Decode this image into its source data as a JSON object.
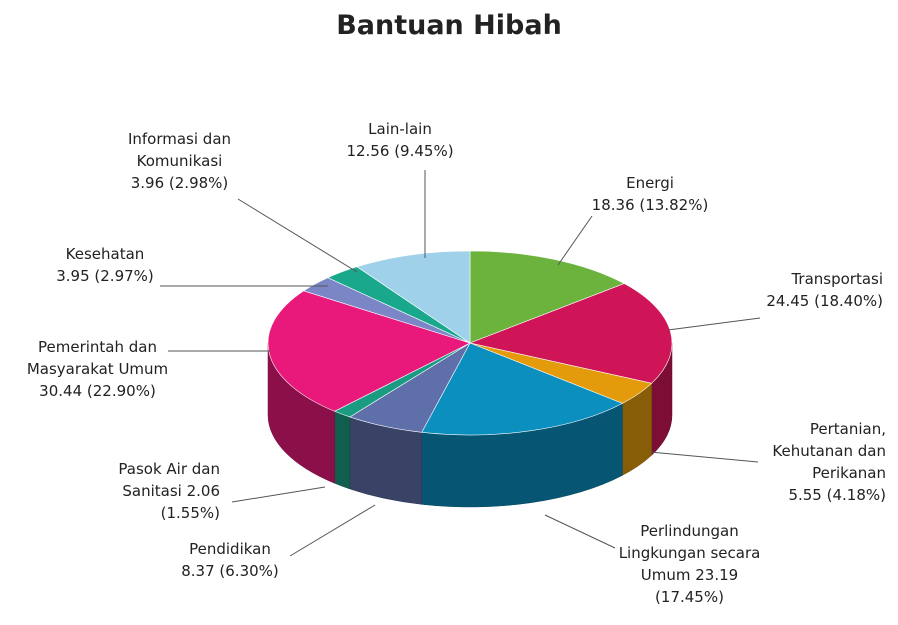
{
  "chart_data": {
    "type": "pie",
    "title": "Bantuan Hibah",
    "categories": [
      "Energi",
      "Transportasi",
      "Pertanian, Kehutanan dan Perikanan",
      "Perlindungan Lingkungan secara Umum",
      "Pendidikan",
      "Pasok Air dan Sanitasi",
      "Pemerintah dan Masyarakat Umum",
      "Kesehatan",
      "Informasi dan Komunikasi",
      "Lain-lain"
    ],
    "values": [
      18.36,
      24.45,
      5.55,
      23.19,
      8.37,
      2.06,
      30.44,
      3.95,
      3.96,
      12.56
    ],
    "percent_labels": [
      "(13.82%)",
      "(18.40%)",
      "(4.18%)",
      "(17.45%)",
      "(6.30%)",
      "(1.55%)",
      "(22.90%)",
      "(2.97%)",
      "(2.98%)",
      "(9.45%)"
    ],
    "colors": [
      "#6cb33e",
      "#cf1558",
      "#e39b0c",
      "#0a8fbf",
      "#5e6fa9",
      "#1a9c82",
      "#e8197a",
      "#7b86c6",
      "#1aa88c",
      "#a0d1ea"
    ]
  }
}
